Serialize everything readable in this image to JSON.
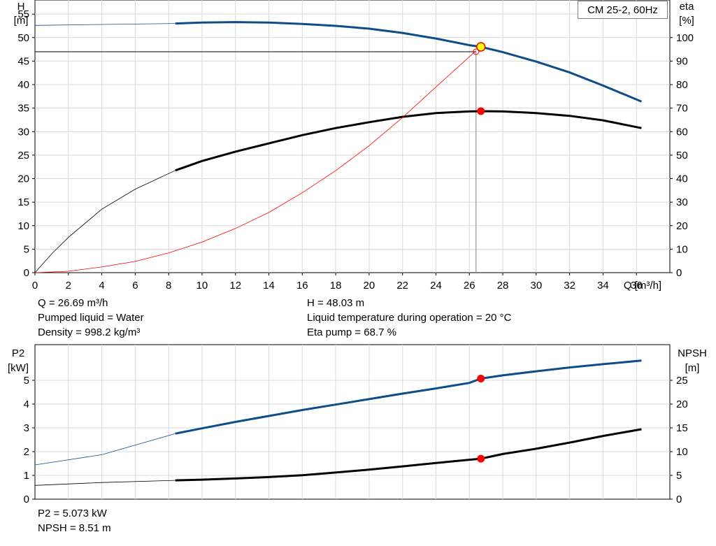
{
  "product_label": "CM 25-2, 60Hz",
  "chart_data": [
    {
      "type": "line",
      "title": "",
      "x_axis": {
        "label": "Q [m³/h]",
        "range": [
          0,
          38
        ],
        "ticks": [
          0,
          2,
          4,
          6,
          8,
          10,
          12,
          14,
          16,
          18,
          20,
          22,
          24,
          26,
          28,
          30,
          32,
          34,
          36
        ]
      },
      "y_axis_left": {
        "label_line1": "H",
        "label_line2": "[m]",
        "range": [
          0,
          58
        ],
        "ticks": [
          0,
          5,
          10,
          15,
          20,
          25,
          30,
          35,
          40,
          45,
          50,
          55
        ]
      },
      "y_axis_right": {
        "label_line1": "eta",
        "label_line2": "[%]",
        "range": [
          0,
          116
        ],
        "ticks": [
          0,
          10,
          20,
          30,
          40,
          50,
          60,
          70,
          80,
          90,
          100
        ]
      },
      "grid": true,
      "series": [
        {
          "name": "H",
          "axis": "left",
          "color": "#0f4c8a",
          "points": [
            [
              0,
              52.6
            ],
            [
              4,
              52.8
            ],
            [
              8.4,
              53.0
            ],
            [
              10,
              53.2
            ],
            [
              12,
              53.3
            ],
            [
              14,
              53.2
            ],
            [
              16,
              52.9
            ],
            [
              18,
              52.5
            ],
            [
              20,
              51.9
            ],
            [
              22,
              51.0
            ],
            [
              24,
              49.8
            ],
            [
              26,
              48.4
            ],
            [
              26.69,
              48.03
            ],
            [
              28,
              46.9
            ],
            [
              30,
              44.9
            ],
            [
              32,
              42.6
            ],
            [
              34,
              39.8
            ],
            [
              36.3,
              36.4
            ]
          ],
          "operating_region": [
            8.4,
            36.3
          ]
        },
        {
          "name": "Eta",
          "axis": "right",
          "color": "#000000",
          "points": [
            [
              0,
              0
            ],
            [
              1,
              8
            ],
            [
              2,
              15
            ],
            [
              4,
              27
            ],
            [
              6,
              35.5
            ],
            [
              8.4,
              43.5
            ],
            [
              10,
              47.5
            ],
            [
              12,
              51.5
            ],
            [
              14,
              55
            ],
            [
              16,
              58.5
            ],
            [
              18,
              61.5
            ],
            [
              20,
              64
            ],
            [
              22,
              66.3
            ],
            [
              24,
              67.9
            ],
            [
              26,
              68.6
            ],
            [
              26.69,
              68.7
            ],
            [
              28,
              68.6
            ],
            [
              30,
              67.9
            ],
            [
              32,
              66.7
            ],
            [
              34,
              64.8
            ],
            [
              36.3,
              61.5
            ]
          ],
          "operating_region": [
            8.4,
            36.3
          ]
        },
        {
          "name": "System curve",
          "axis": "left",
          "color": "#ff0000",
          "points": [
            [
              0,
              0
            ],
            [
              2,
              0.3
            ],
            [
              4,
              1.2
            ],
            [
              6,
              2.4
            ],
            [
              8,
              4.2
            ],
            [
              10,
              6.5
            ],
            [
              12,
              9.4
            ],
            [
              14,
              12.8
            ],
            [
              16,
              17.0
            ],
            [
              18,
              21.7
            ],
            [
              20,
              27.0
            ],
            [
              22,
              33.0
            ],
            [
              24,
              39.5
            ],
            [
              26.4,
              47.2
            ]
          ]
        }
      ],
      "operating_point": {
        "q": 26.69,
        "h": 48.03,
        "eta": 68.7
      },
      "duty_line": {
        "h": 47.0,
        "q": 26.4
      }
    },
    {
      "type": "line",
      "title": "",
      "x_axis": {
        "range": [
          0,
          38
        ]
      },
      "y_axis_left": {
        "label_line1": "P2",
        "label_line2": "[kW]",
        "range": [
          0,
          6.5
        ],
        "ticks": [
          0,
          1,
          2,
          3,
          4,
          5
        ]
      },
      "y_axis_right": {
        "label_line1": "NPSH",
        "label_line2": "[m]",
        "range": [
          0,
          32.5
        ],
        "ticks": [
          0,
          5,
          10,
          15,
          20,
          25
        ]
      },
      "grid": true,
      "series": [
        {
          "name": "P2",
          "axis": "left",
          "color": "#0f4c8a",
          "points": [
            [
              0,
              1.44
            ],
            [
              4,
              1.87
            ],
            [
              8.4,
              2.76
            ],
            [
              10,
              2.98
            ],
            [
              12,
              3.25
            ],
            [
              14,
              3.5
            ],
            [
              16,
              3.75
            ],
            [
              18,
              3.98
            ],
            [
              20,
              4.21
            ],
            [
              22,
              4.44
            ],
            [
              24,
              4.66
            ],
            [
              26,
              4.89
            ],
            [
              26.69,
              5.073
            ],
            [
              28,
              5.21
            ],
            [
              30,
              5.38
            ],
            [
              32,
              5.54
            ],
            [
              34,
              5.68
            ],
            [
              36.3,
              5.83
            ]
          ],
          "operating_region": [
            8.4,
            36.3
          ]
        },
        {
          "name": "NPSH",
          "axis": "right",
          "color": "#000000",
          "points": [
            [
              0,
              2.9
            ],
            [
              4,
              3.5
            ],
            [
              8.4,
              3.95
            ],
            [
              10,
              4.1
            ],
            [
              12,
              4.35
            ],
            [
              14,
              4.65
            ],
            [
              16,
              5.05
            ],
            [
              18,
              5.6
            ],
            [
              20,
              6.2
            ],
            [
              22,
              6.9
            ],
            [
              24,
              7.6
            ],
            [
              26,
              8.3
            ],
            [
              26.69,
              8.51
            ],
            [
              28,
              9.5
            ],
            [
              30,
              10.6
            ],
            [
              32,
              11.9
            ],
            [
              34,
              13.3
            ],
            [
              36.3,
              14.7
            ]
          ],
          "operating_region": [
            8.4,
            36.3
          ]
        }
      ],
      "operating_point": {
        "q": 26.69,
        "p2": 5.073,
        "npsh": 8.51
      }
    }
  ],
  "info_top_left": [
    "Q = 26.69 m³/h",
    "Pumped liquid = Water",
    "Density = 998.2 kg/m³"
  ],
  "info_top_right": [
    "H = 48.03 m",
    "Liquid temperature during operation = 20 °C",
    "Eta pump = 68.7 %"
  ],
  "info_bottom": [
    "P2 = 5.073 kW",
    "NPSH = 8.51 m"
  ],
  "colors": {
    "pump_curve": "#0f4c8a",
    "efficiency_curve": "#000000",
    "system_curve": "#ff0000",
    "grid": "#d9d9d9",
    "operating_point": "#ff0000",
    "duty_point": "#ffff00"
  }
}
